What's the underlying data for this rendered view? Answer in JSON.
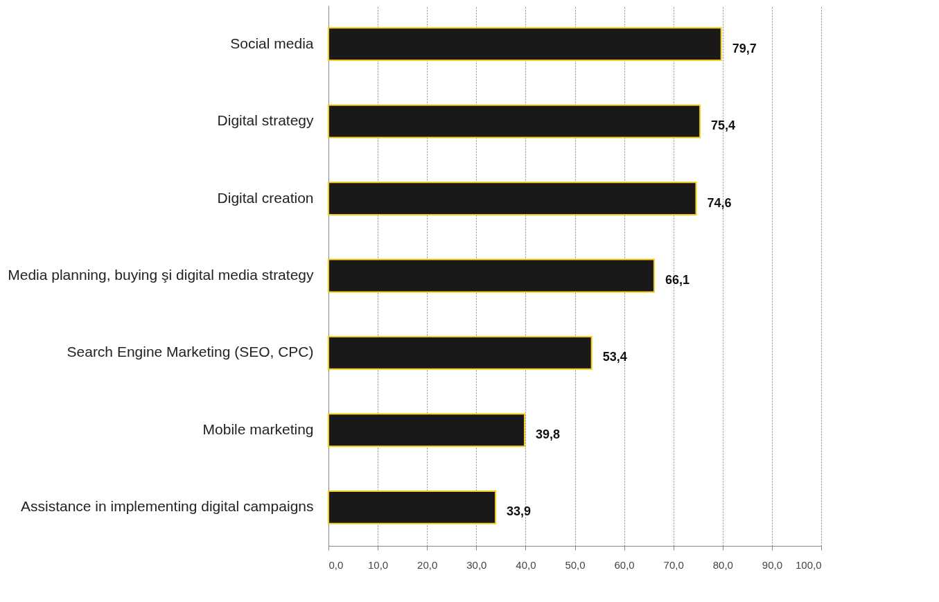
{
  "chart_data": {
    "type": "bar",
    "orientation": "horizontal",
    "categories": [
      "Social media",
      "Digital strategy",
      "Digital creation",
      "Media planning, buying şi digital media strategy",
      "Search Engine Marketing (SEO, CPC)",
      "Mobile marketing",
      "Assistance in implementing digital campaigns"
    ],
    "values": [
      79.7,
      75.4,
      74.6,
      66.1,
      53.4,
      39.8,
      33.9
    ],
    "value_labels": [
      "79,7",
      "75,4",
      "74,6",
      "66,1",
      "53,4",
      "39,8",
      "33,9"
    ],
    "color": "#1b181a",
    "xlim": [
      0,
      100
    ],
    "xticks": [
      {
        "value": 0,
        "label": "0,0"
      },
      {
        "value": 10,
        "label": "10,0"
      },
      {
        "value": 20,
        "label": "20,0"
      },
      {
        "value": 30,
        "label": "30,0"
      },
      {
        "value": 40,
        "label": "40,0"
      },
      {
        "value": 50,
        "label": "50,0"
      },
      {
        "value": 60,
        "label": "60,0"
      },
      {
        "value": 70,
        "label": "70,0"
      },
      {
        "value": 80,
        "label": "80,0"
      },
      {
        "value": 90,
        "label": "90,0"
      },
      {
        "value": 100,
        "label": "100,0"
      }
    ],
    "grid": "x"
  }
}
